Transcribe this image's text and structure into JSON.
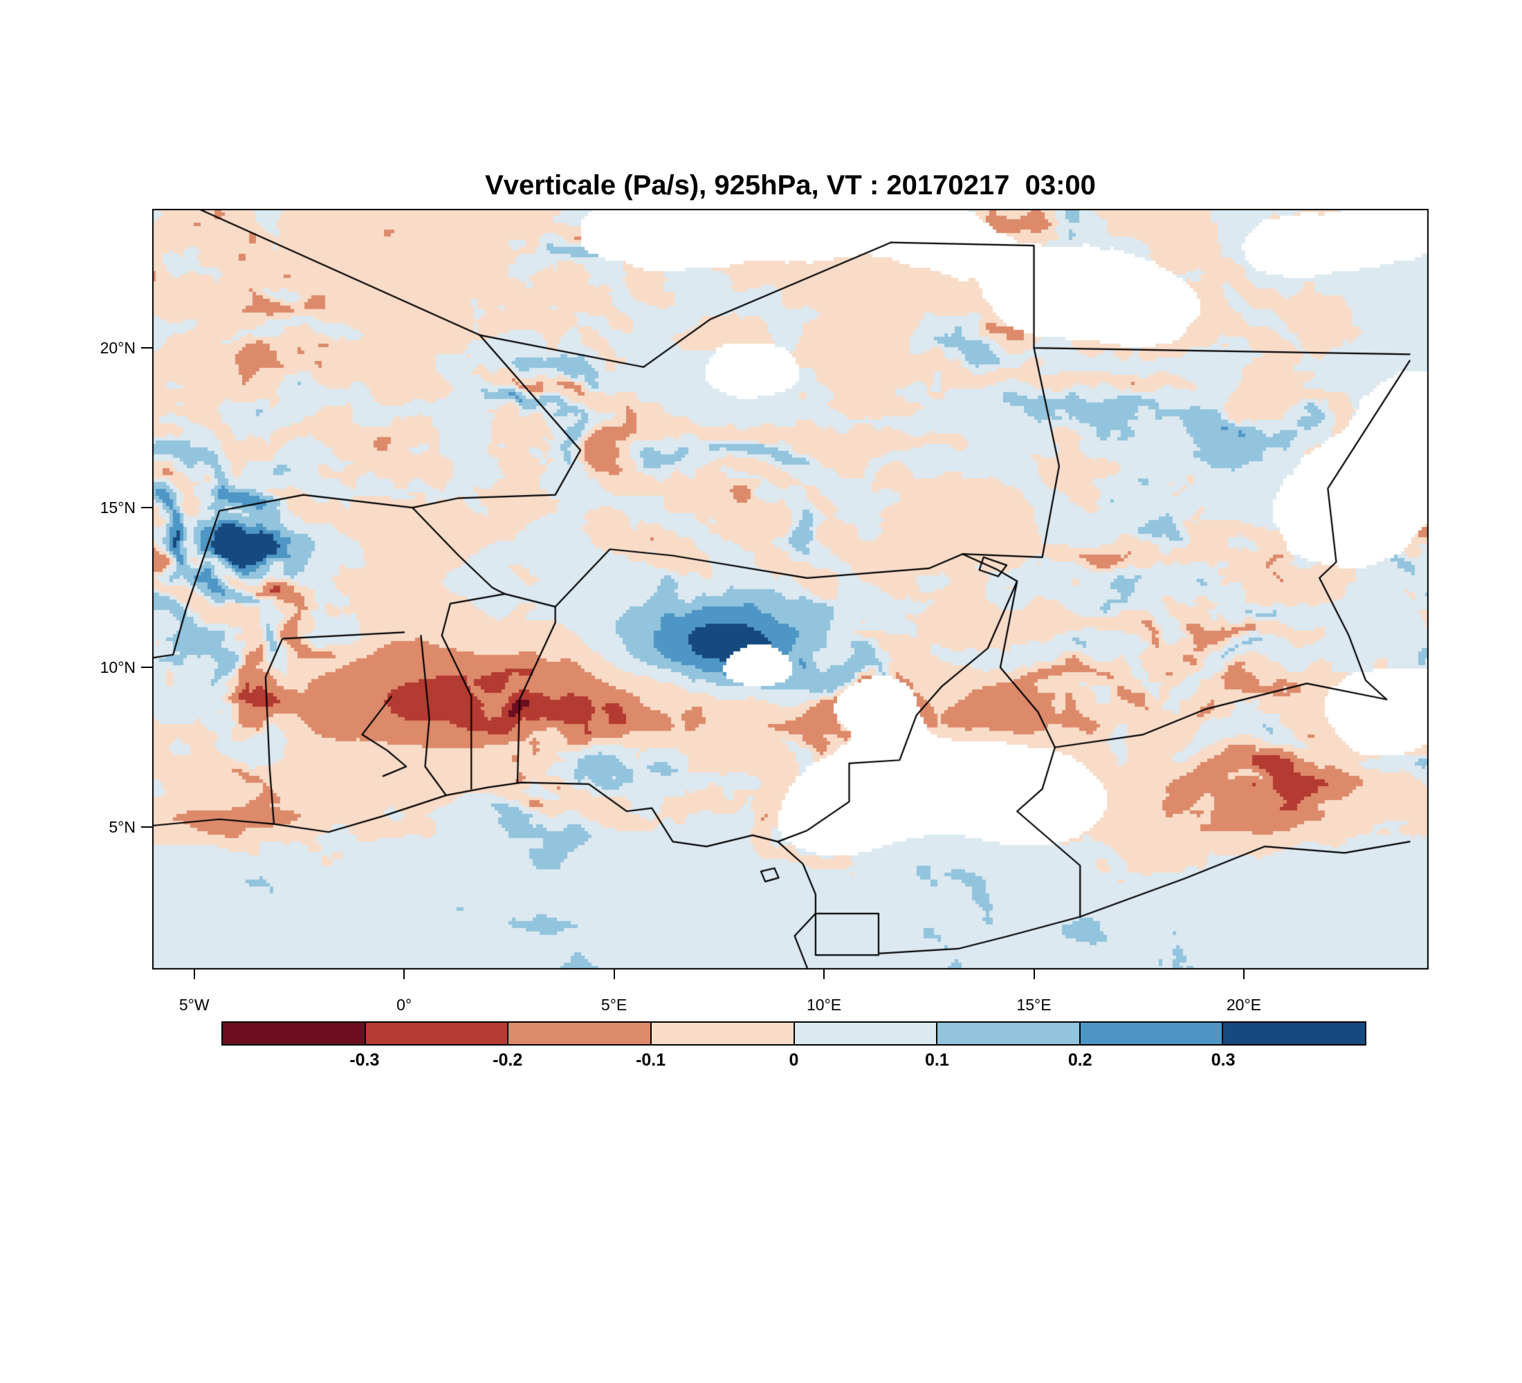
{
  "chart_data": {
    "type": "heatmap",
    "title": "Vverticale (Pa/s), 925hPa, VT : 20170217  03:00",
    "variable": "Vverticale",
    "units": "Pa/s",
    "pressure_level": "925hPa",
    "valid_time": "20170217 03:00",
    "grid": "off",
    "legend_position": "bottom",
    "x": {
      "axis": "longitude",
      "range": [
        -6,
        24.4
      ],
      "ticks": [
        -5,
        0,
        5,
        10,
        15,
        20
      ],
      "tick_labels": [
        "5°W",
        "0°",
        "5°E",
        "10°E",
        "15°E",
        "20°E"
      ]
    },
    "y": {
      "axis": "latitude",
      "range": [
        0.55,
        24.35
      ],
      "ticks": [
        5,
        10,
        15,
        20
      ],
      "tick_labels": [
        "5°N",
        "10°N",
        "15°N",
        "20°N"
      ]
    },
    "colorbar": {
      "orientation": "horizontal",
      "levels": [
        -0.3,
        -0.2,
        -0.1,
        0,
        0.1,
        0.2,
        0.3
      ],
      "tick_labels": [
        "-0.3",
        "-0.2",
        "-0.1",
        "0",
        "0.1",
        "0.2",
        "0.3"
      ],
      "colors": [
        "#6d0d20",
        "#b43b32",
        "#dd8a6b",
        "#f8dcc8",
        "#dce9f1",
        "#93c4dd",
        "#4e96c6",
        "#164a7f"
      ],
      "missing_color": "#ffffff"
    },
    "map_borders": [
      [
        [
          -6,
          25
        ],
        [
          1.8,
          20.4
        ]
      ],
      [
        [
          1.8,
          20.4
        ],
        [
          5.7,
          19.4
        ]
      ],
      [
        [
          5.7,
          19.4
        ],
        [
          7.3,
          20.9
        ],
        [
          11.6,
          23.3
        ]
      ],
      [
        [
          11.6,
          23.3
        ],
        [
          15.0,
          23.2
        ],
        [
          15.0,
          20.0
        ],
        [
          23.95,
          19.8
        ]
      ],
      [
        [
          1.8,
          20.4
        ],
        [
          4.2,
          16.8
        ],
        [
          3.6,
          15.4
        ],
        [
          1.3,
          15.3
        ],
        [
          0.2,
          15.0
        ]
      ],
      [
        [
          0.2,
          15.0
        ],
        [
          -2.4,
          15.4
        ],
        [
          -4.4,
          14.9
        ],
        [
          -5.2,
          11.8
        ],
        [
          -5.5,
          10.4
        ],
        [
          -6,
          10.3
        ]
      ],
      [
        [
          0.0,
          11.1
        ],
        [
          -2.9,
          10.9
        ],
        [
          -3.3,
          9.7
        ],
        [
          -3.2,
          6.8
        ],
        [
          -3.1,
          5.1
        ]
      ],
      [
        [
          0.4,
          11.0
        ],
        [
          0.6,
          8.4
        ],
        [
          0.5,
          6.9
        ],
        [
          1.0,
          6.0
        ]
      ],
      [
        [
          0.9,
          11.0
        ],
        [
          1.6,
          9.1
        ],
        [
          1.6,
          6.2
        ]
      ],
      [
        [
          0.9,
          11.0
        ],
        [
          1.1,
          12.0
        ],
        [
          2.4,
          12.3
        ],
        [
          3.6,
          11.9
        ],
        [
          3.6,
          11.4
        ],
        [
          2.75,
          9.0
        ],
        [
          2.7,
          6.4
        ]
      ],
      [
        [
          0.2,
          15.0
        ],
        [
          1.3,
          13.5
        ],
        [
          2.1,
          12.5
        ],
        [
          2.4,
          12.3
        ]
      ],
      [
        [
          3.6,
          11.9
        ],
        [
          4.9,
          13.7
        ],
        [
          6.4,
          13.5
        ],
        [
          9.6,
          12.8
        ],
        [
          12.5,
          13.1
        ],
        [
          13.3,
          13.55
        ]
      ],
      [
        [
          13.3,
          13.55
        ],
        [
          15.2,
          13.45
        ],
        [
          15.6,
          16.3
        ],
        [
          15.0,
          20.0
        ]
      ],
      [
        [
          13.3,
          13.55
        ],
        [
          14.1,
          13.08
        ],
        [
          14.6,
          12.7
        ],
        [
          14.2,
          10.0
        ],
        [
          15.1,
          8.6
        ],
        [
          15.5,
          7.5
        ]
      ],
      [
        [
          14.6,
          12.7
        ],
        [
          13.9,
          10.6
        ],
        [
          12.8,
          9.4
        ],
        [
          12.2,
          8.5
        ],
        [
          11.8,
          7.1
        ],
        [
          10.6,
          7.0
        ],
        [
          10.6,
          5.8
        ],
        [
          9.6,
          4.9
        ],
        [
          8.9,
          4.55
        ]
      ],
      [
        [
          15.5,
          7.5
        ],
        [
          17.6,
          7.9
        ],
        [
          19.1,
          8.7
        ],
        [
          21.5,
          9.5
        ],
        [
          23.4,
          9.0
        ]
      ],
      [
        [
          23.95,
          19.6
        ],
        [
          22.0,
          15.6
        ],
        [
          22.2,
          13.3
        ],
        [
          21.8,
          12.8
        ],
        [
          22.5,
          11.0
        ],
        [
          22.9,
          9.6
        ],
        [
          23.4,
          9.0
        ]
      ],
      [
        [
          15.5,
          7.5
        ],
        [
          15.2,
          6.2
        ],
        [
          14.6,
          5.5
        ],
        [
          16.1,
          3.8
        ],
        [
          16.1,
          2.2
        ]
      ],
      [
        [
          16.1,
          2.2
        ],
        [
          18.6,
          3.4
        ],
        [
          20.5,
          4.4
        ],
        [
          22.4,
          4.2
        ],
        [
          23.95,
          4.55
        ]
      ],
      [
        [
          9.8,
          2.3
        ],
        [
          11.3,
          2.3
        ],
        [
          11.3,
          1.05
        ],
        [
          13.2,
          1.2
        ],
        [
          14.4,
          1.6
        ],
        [
          16.1,
          2.2
        ]
      ],
      [
        [
          9.8,
          2.3
        ],
        [
          9.8,
          1.0
        ],
        [
          11.3,
          1.0
        ]
      ],
      [
        [
          -6,
          5.05
        ],
        [
          -4.4,
          5.25
        ],
        [
          -3.1,
          5.1
        ],
        [
          -1.8,
          4.85
        ],
        [
          -0.5,
          5.35
        ],
        [
          1.0,
          6.0
        ],
        [
          2.0,
          6.25
        ],
        [
          2.8,
          6.4
        ],
        [
          4.4,
          6.35
        ],
        [
          5.3,
          5.5
        ],
        [
          5.9,
          5.6
        ],
        [
          6.4,
          4.55
        ],
        [
          7.2,
          4.4
        ],
        [
          8.3,
          4.75
        ],
        [
          8.9,
          4.55
        ],
        [
          9.5,
          3.85
        ],
        [
          9.8,
          2.9
        ],
        [
          9.8,
          2.3
        ],
        [
          9.3,
          1.6
        ],
        [
          9.6,
          0.6
        ]
      ],
      [
        [
          -0.3,
          9.1
        ],
        [
          -1.0,
          7.9
        ],
        [
          -0.4,
          7.4
        ],
        [
          0.05,
          6.9
        ],
        [
          -0.5,
          6.6
        ]
      ],
      [
        [
          13.8,
          13.45
        ],
        [
          14.35,
          13.2
        ],
        [
          14.15,
          12.85
        ],
        [
          13.7,
          13.05
        ],
        [
          13.8,
          13.45
        ]
      ],
      [
        [
          8.5,
          3.62
        ],
        [
          8.82,
          3.72
        ],
        [
          8.92,
          3.42
        ],
        [
          8.6,
          3.3
        ],
        [
          8.5,
          3.62
        ]
      ]
    ],
    "missing_data_patches": [
      [
        6.5,
        23.7,
        1.9,
        1.0
      ],
      [
        9.8,
        23.9,
        1.3,
        0.9
      ],
      [
        12.9,
        23.4,
        0.9,
        0.8
      ],
      [
        15.4,
        21.8,
        1.3,
        1.1
      ],
      [
        17.6,
        21.3,
        1.1,
        1.0
      ],
      [
        21.4,
        23.2,
        1.2,
        0.8
      ],
      [
        23.7,
        23.8,
        0.8,
        0.7
      ],
      [
        23.9,
        17.5,
        1.1,
        1.5
      ],
      [
        22.4,
        14.9,
        1.5,
        1.3
      ],
      [
        23.4,
        8.7,
        1.3,
        1.1
      ],
      [
        8.5,
        10.0,
        0.75,
        0.6
      ],
      [
        11.2,
        8.8,
        0.8,
        0.7
      ],
      [
        11.6,
        6.1,
        1.7,
        1.0
      ],
      [
        13.9,
        6.2,
        1.4,
        0.95
      ],
      [
        10.3,
        5.0,
        0.85,
        0.65
      ],
      [
        15.3,
        5.8,
        1.0,
        0.85
      ],
      [
        8.3,
        19.2,
        0.85,
        0.75
      ]
    ]
  }
}
